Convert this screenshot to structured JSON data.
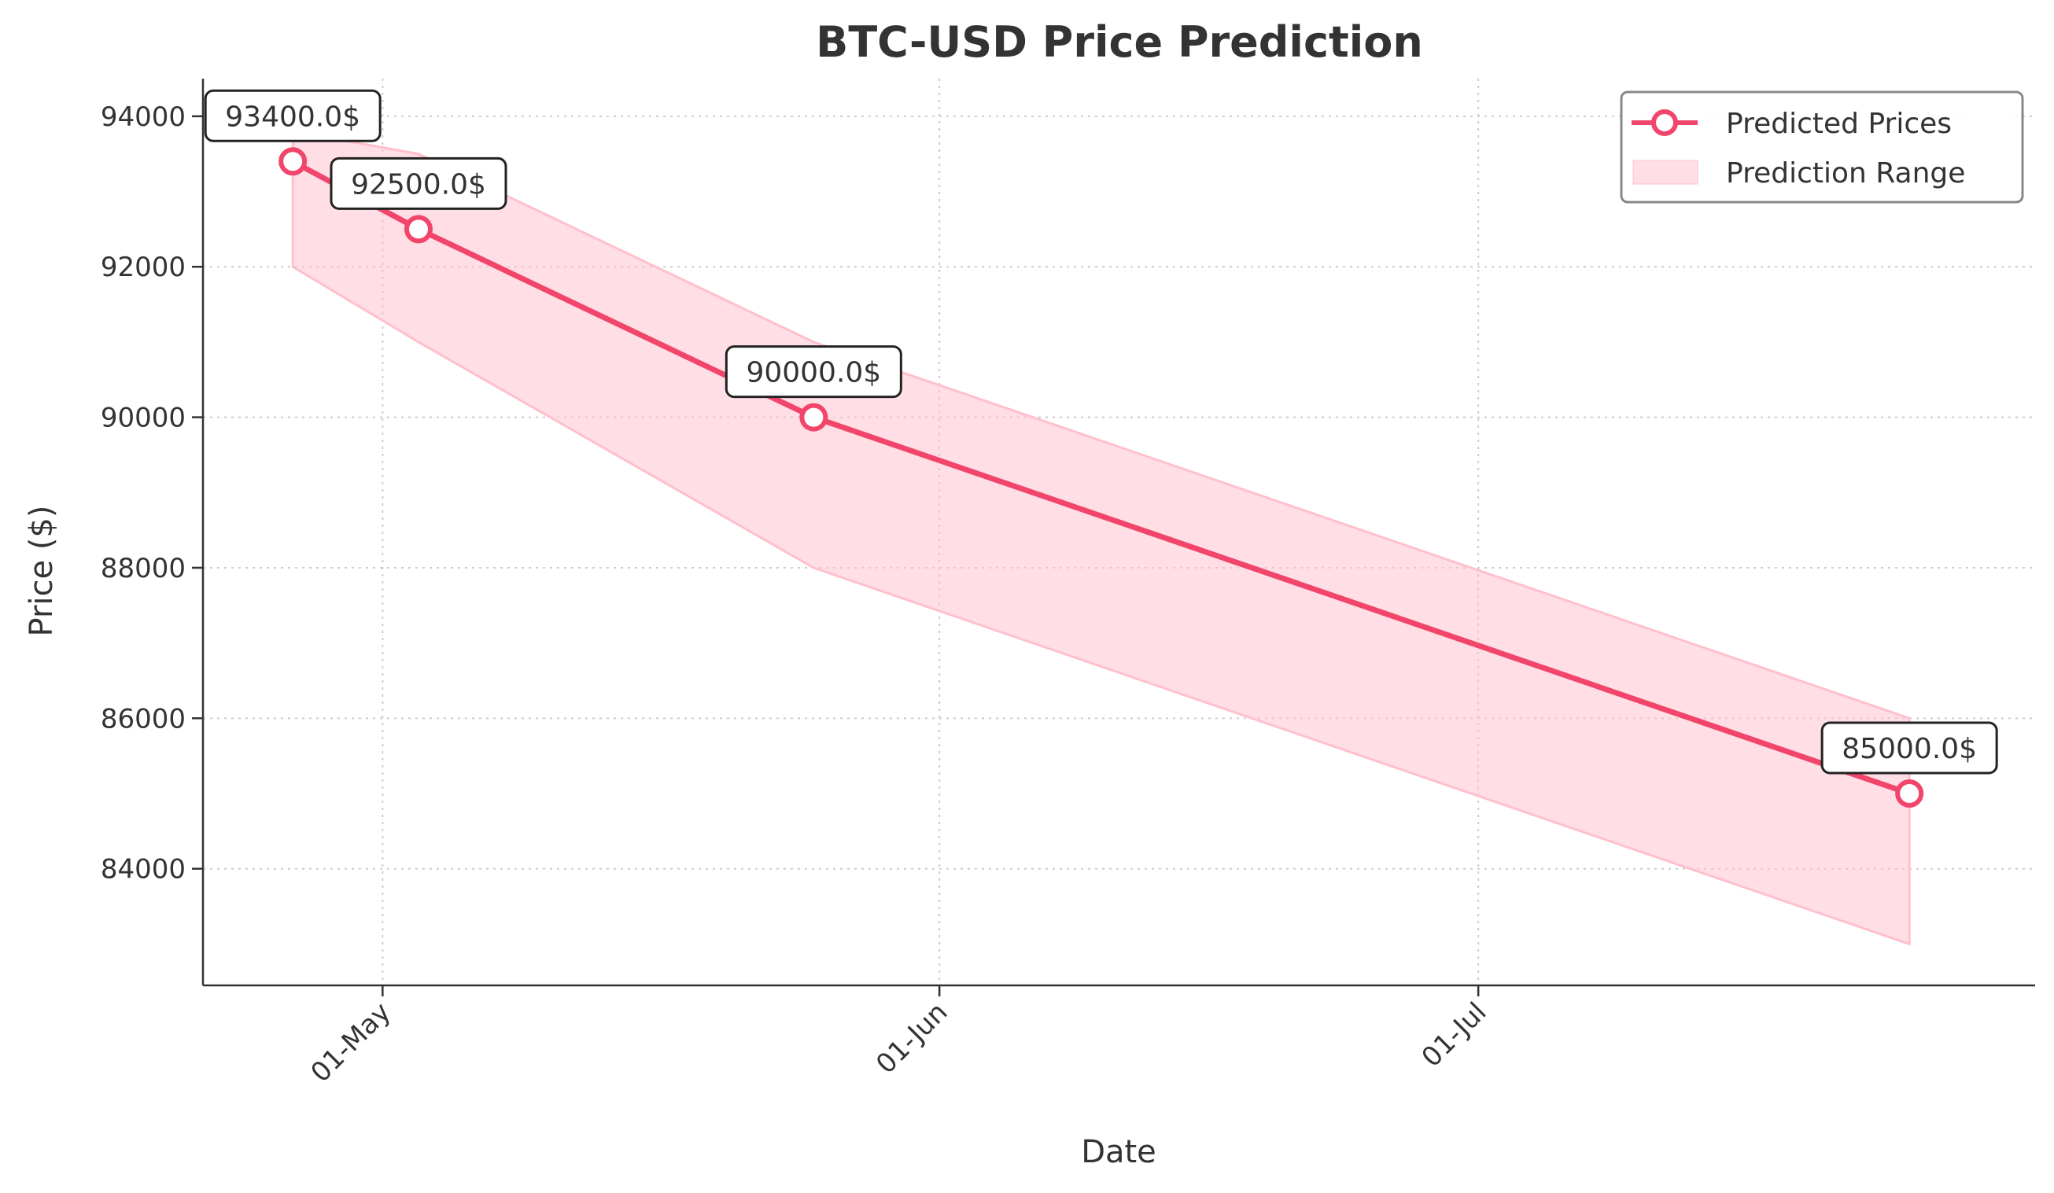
{
  "chart_data": {
    "type": "line",
    "title": "BTC-USD Price Prediction",
    "xlabel": "Date",
    "ylabel": "Price ($)",
    "x_type": "date",
    "xlim": [
      "2025-04-21",
      "2025-08-01"
    ],
    "ylim": [
      82450,
      94500
    ],
    "x_ticks": [
      {
        "date": "2025-05-01",
        "label": "01-May"
      },
      {
        "date": "2025-06-01",
        "label": "01-Jun"
      },
      {
        "date": "2025-07-01",
        "label": "01-Jul"
      }
    ],
    "y_ticks": [
      {
        "value": 84000,
        "label": "84000"
      },
      {
        "value": 86000,
        "label": "86000"
      },
      {
        "value": 88000,
        "label": "88000"
      },
      {
        "value": 90000,
        "label": "90000"
      },
      {
        "value": 92000,
        "label": "92000"
      },
      {
        "value": 94000,
        "label": "94000"
      }
    ],
    "grid": true,
    "legend_position": "top-right",
    "series": [
      {
        "name": "Predicted Prices",
        "color": "#f2456b",
        "points": [
          {
            "x": "2025-04-26",
            "y": 93400,
            "label": "93400.0$"
          },
          {
            "x": "2025-05-03",
            "y": 92500,
            "label": "92500.0$"
          },
          {
            "x": "2025-05-25",
            "y": 90000,
            "label": "90000.0$"
          },
          {
            "x": "2025-07-25",
            "y": 85000,
            "label": "85000.0$"
          }
        ]
      }
    ],
    "band": {
      "name": "Prediction Range",
      "color": "#ffc0cb",
      "x": [
        "2025-04-26",
        "2025-05-03",
        "2025-05-25",
        "2025-07-25"
      ],
      "lower": [
        92000,
        91000,
        88000,
        83000
      ],
      "upper": [
        93800,
        93500,
        91000,
        86000
      ]
    }
  }
}
